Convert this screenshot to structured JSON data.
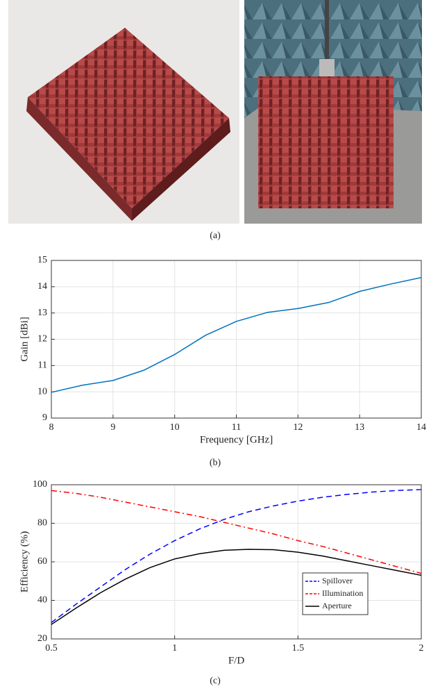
{
  "captions": [
    "(a)",
    "(b)",
    "(c)"
  ],
  "chart_data": [
    {
      "type": "line",
      "xlabel": "Frequency [GHz]",
      "ylabel": "Gain [dBi]",
      "x": [
        8,
        8.5,
        9,
        9.5,
        10,
        10.5,
        11,
        11.5,
        12,
        12.5,
        13,
        13.5,
        14
      ],
      "values": [
        9.98,
        10.25,
        10.43,
        10.82,
        11.42,
        12.15,
        12.68,
        13.02,
        13.17,
        13.4,
        13.82,
        14.1,
        14.35
      ],
      "color": "#0072bd",
      "xlim": [
        8,
        14
      ],
      "xticks": [
        8,
        9,
        10,
        11,
        12,
        13,
        14
      ],
      "ylim": [
        9,
        15
      ],
      "yticks": [
        9,
        10,
        11,
        12,
        13,
        14,
        15
      ],
      "grid": true
    },
    {
      "type": "line",
      "xlabel": "F/D",
      "ylabel": "Efficiency (%)",
      "x": [
        0.5,
        0.6,
        0.7,
        0.8,
        0.9,
        1.0,
        1.1,
        1.2,
        1.3,
        1.4,
        1.5,
        1.6,
        1.7,
        1.8,
        1.9,
        2.0
      ],
      "series": [
        {
          "name": "Spillover",
          "color": "#0000ff",
          "linestyle": "dashed",
          "values": [
            28.5,
            38,
            47,
            56,
            64,
            71,
            77,
            82,
            86,
            89,
            91.5,
            93.5,
            95,
            96.2,
            97,
            97.5
          ]
        },
        {
          "name": "Illumination",
          "color": "#ff0000",
          "linestyle": "dashdot",
          "values": [
            97,
            95.5,
            93.5,
            91,
            88.5,
            86,
            83.5,
            80.5,
            77.5,
            74.5,
            71,
            68,
            64.5,
            61,
            57.5,
            54
          ]
        },
        {
          "name": "Aperture",
          "color": "#000000",
          "linestyle": "solid",
          "values": [
            27.5,
            36,
            44,
            51,
            57,
            61.5,
            64.2,
            66,
            66.5,
            66.3,
            65,
            63,
            60.5,
            58,
            55.5,
            53
          ]
        }
      ],
      "xlim": [
        0.5,
        2
      ],
      "xticks": [
        0.5,
        1,
        1.5,
        2
      ],
      "ylim": [
        20,
        100
      ],
      "yticks": [
        20,
        40,
        60,
        80,
        100
      ],
      "grid": true,
      "legend": "lower right"
    }
  ]
}
